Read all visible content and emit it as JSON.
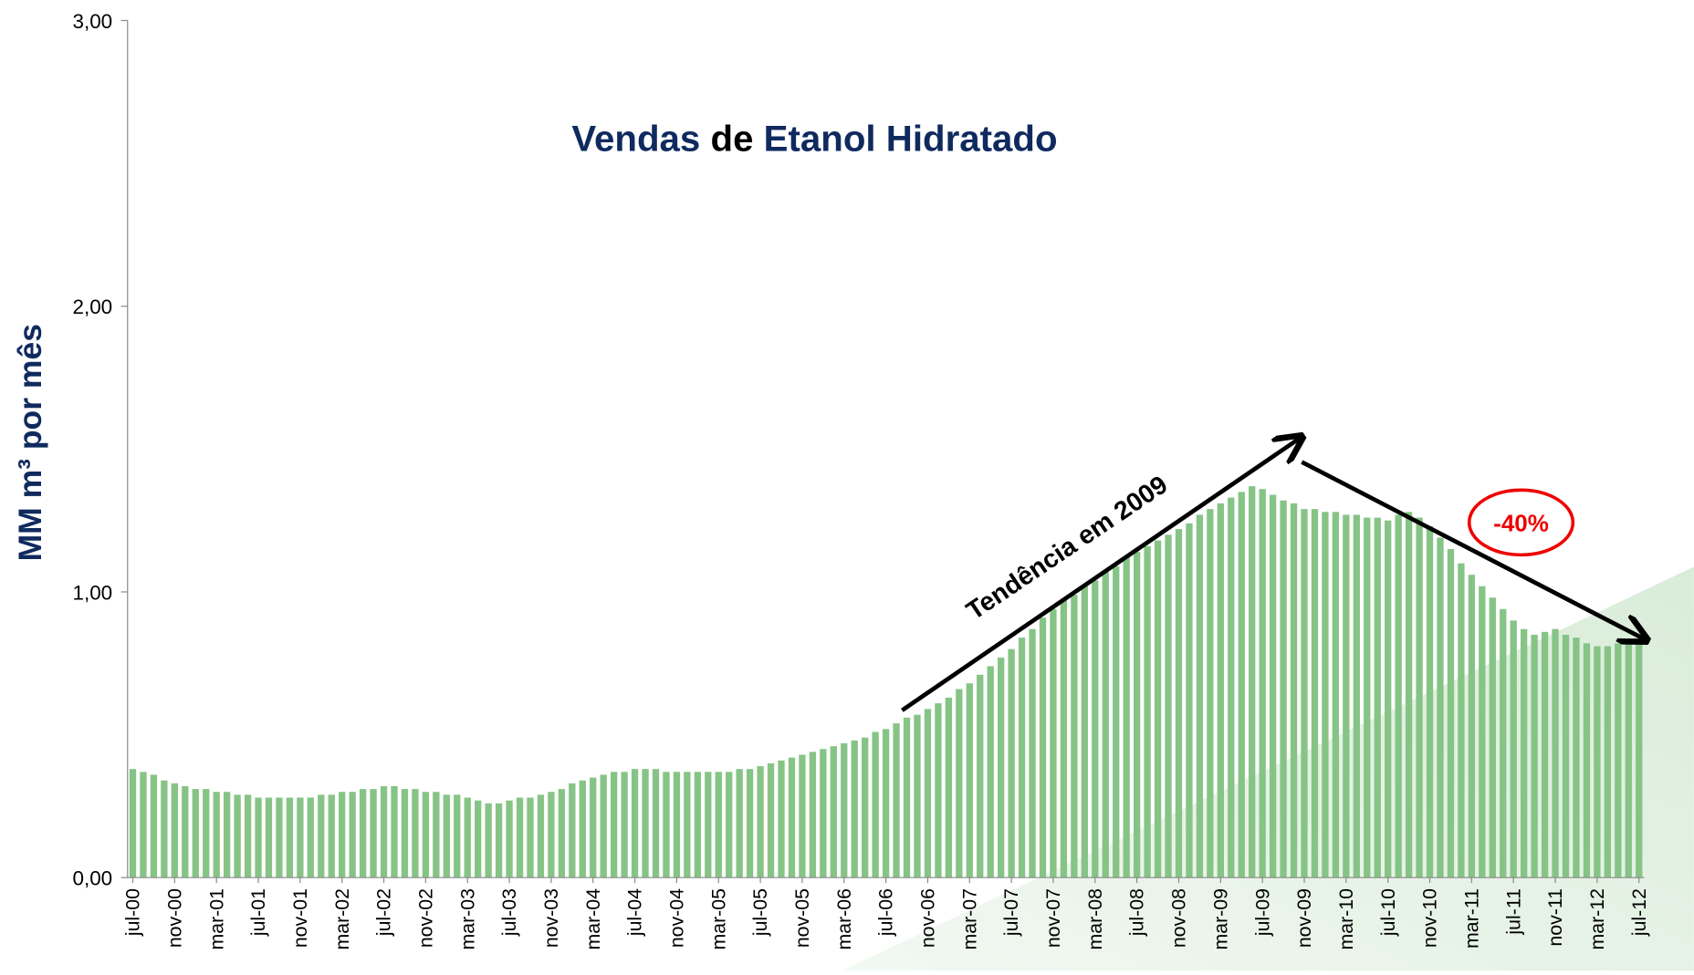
{
  "chart_data": {
    "type": "bar",
    "title_parts": [
      "Vendas",
      "de",
      "Etanol Hidratado"
    ],
    "y_label": "MM m³ por mês",
    "annotations": [
      "Tendência em 2009",
      "-40%"
    ],
    "color": "#86c486",
    "ylim": [
      0,
      3
    ],
    "yticks": [
      {
        "value": 0,
        "label": "0,00"
      },
      {
        "value": 1,
        "label": "1,00"
      },
      {
        "value": 2,
        "label": "2,00"
      },
      {
        "value": 3,
        "label": "3,00"
      }
    ],
    "categories": [
      "jul-00",
      null,
      null,
      null,
      "nov-00",
      null,
      null,
      null,
      "mar-01",
      null,
      null,
      null,
      "jul-01",
      null,
      null,
      null,
      "nov-01",
      null,
      null,
      null,
      "mar-02",
      null,
      null,
      null,
      "jul-02",
      null,
      null,
      null,
      "nov-02",
      null,
      null,
      null,
      "mar-03",
      null,
      null,
      null,
      "jul-03",
      null,
      null,
      null,
      "nov-03",
      null,
      null,
      null,
      "mar-04",
      null,
      null,
      null,
      "jul-04",
      null,
      null,
      null,
      "nov-04",
      null,
      null,
      null,
      "mar-05",
      null,
      null,
      null,
      "jul-05",
      null,
      null,
      null,
      "nov-05",
      null,
      null,
      null,
      "mar-06",
      null,
      null,
      null,
      "jul-06",
      null,
      null,
      null,
      "nov-06",
      null,
      null,
      null,
      "mar-07",
      null,
      null,
      null,
      "jul-07",
      null,
      null,
      null,
      "nov-07",
      null,
      null,
      null,
      "mar-08",
      null,
      null,
      null,
      "jul-08",
      null,
      null,
      null,
      "nov-08",
      null,
      null,
      null,
      "mar-09",
      null,
      null,
      null,
      "jul-09",
      null,
      null,
      null,
      "nov-09",
      null,
      null,
      null,
      "mar-10",
      null,
      null,
      null,
      "jul-10",
      null,
      null,
      null,
      "nov-10",
      null,
      null,
      null,
      "mar-11",
      null,
      null,
      null,
      "jul-11",
      null,
      null,
      null,
      "nov-11",
      null,
      null,
      null,
      "mar-12",
      null,
      null,
      null,
      "jul-12"
    ],
    "values": [
      0.38,
      0.37,
      0.36,
      0.34,
      0.33,
      0.32,
      0.31,
      0.31,
      0.3,
      0.3,
      0.29,
      0.29,
      0.28,
      0.28,
      0.28,
      0.28,
      0.28,
      0.28,
      0.29,
      0.29,
      0.3,
      0.3,
      0.31,
      0.31,
      0.32,
      0.32,
      0.31,
      0.31,
      0.3,
      0.3,
      0.29,
      0.29,
      0.28,
      0.27,
      0.26,
      0.26,
      0.27,
      0.28,
      0.28,
      0.29,
      0.3,
      0.31,
      0.33,
      0.34,
      0.35,
      0.36,
      0.37,
      0.37,
      0.38,
      0.38,
      0.38,
      0.37,
      0.37,
      0.37,
      0.37,
      0.37,
      0.37,
      0.37,
      0.38,
      0.38,
      0.39,
      0.4,
      0.41,
      0.42,
      0.43,
      0.44,
      0.45,
      0.46,
      0.47,
      0.48,
      0.49,
      0.51,
      0.52,
      0.54,
      0.56,
      0.57,
      0.59,
      0.61,
      0.63,
      0.66,
      0.68,
      0.71,
      0.74,
      0.77,
      0.8,
      0.84,
      0.87,
      0.91,
      0.94,
      0.97,
      0.99,
      1.02,
      1.04,
      1.07,
      1.09,
      1.12,
      1.14,
      1.16,
      1.18,
      1.2,
      1.22,
      1.24,
      1.27,
      1.29,
      1.31,
      1.33,
      1.35,
      1.37,
      1.36,
      1.34,
      1.32,
      1.31,
      1.29,
      1.29,
      1.28,
      1.28,
      1.27,
      1.27,
      1.26,
      1.26,
      1.25,
      1.27,
      1.28,
      1.26,
      1.23,
      1.19,
      1.15,
      1.1,
      1.06,
      1.02,
      0.98,
      0.94,
      0.9,
      0.87,
      0.85,
      0.86,
      0.87,
      0.85,
      0.84,
      0.82,
      0.81,
      0.81,
      0.82,
      0.82,
      0.83
    ]
  }
}
